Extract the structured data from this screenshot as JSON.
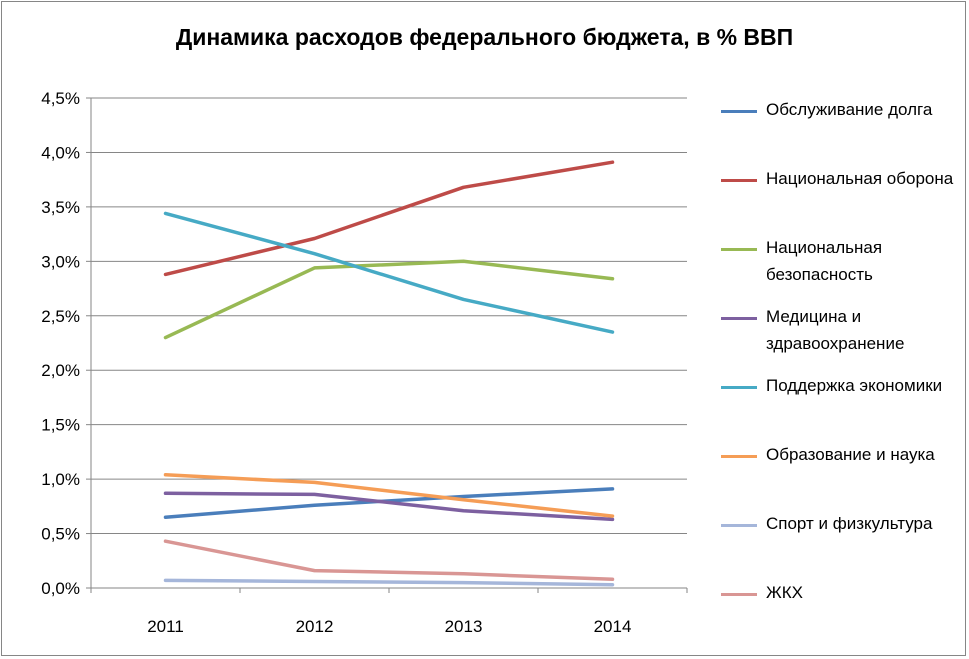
{
  "chart_data": {
    "type": "line",
    "title": "Динамика расходов федерального бюджета, в % ВВП",
    "xlabel": "",
    "ylabel": "",
    "categories": [
      "2011",
      "2012",
      "2013",
      "2014"
    ],
    "ylim": [
      0,
      4.5
    ],
    "y_ticks": [
      "0,0%",
      "0,5%",
      "1,0%",
      "1,5%",
      "2,0%",
      "2,5%",
      "3,0%",
      "3,5%",
      "4,0%",
      "4,5%"
    ],
    "grid": true,
    "legend_position": "right",
    "series": [
      {
        "name": "Обслуживание долга",
        "color": "#4A7EBB",
        "values": [
          0.65,
          0.76,
          0.84,
          0.91
        ]
      },
      {
        "name": "Национальная оборона",
        "color": "#BE4B48",
        "values": [
          2.88,
          3.21,
          3.68,
          3.91
        ]
      },
      {
        "name": "Национальная безопасность",
        "color": "#98B954",
        "values": [
          2.3,
          2.94,
          3.0,
          2.84
        ]
      },
      {
        "name": "Медицина и здравоохранение",
        "color": "#7D60A0",
        "values": [
          0.87,
          0.86,
          0.71,
          0.63
        ]
      },
      {
        "name": "Поддержка экономики",
        "color": "#46AAC5",
        "values": [
          3.44,
          3.07,
          2.65,
          2.35
        ]
      },
      {
        "name": "Образование и наука",
        "color": "#F59D56",
        "values": [
          1.04,
          0.97,
          0.81,
          0.66
        ]
      },
      {
        "name": "Спорт и физкультура",
        "color": "#A5B6DA",
        "values": [
          0.07,
          0.06,
          0.05,
          0.03
        ]
      },
      {
        "name": "ЖКХ",
        "color": "#D99694",
        "values": [
          0.43,
          0.16,
          0.13,
          0.08
        ]
      }
    ]
  }
}
